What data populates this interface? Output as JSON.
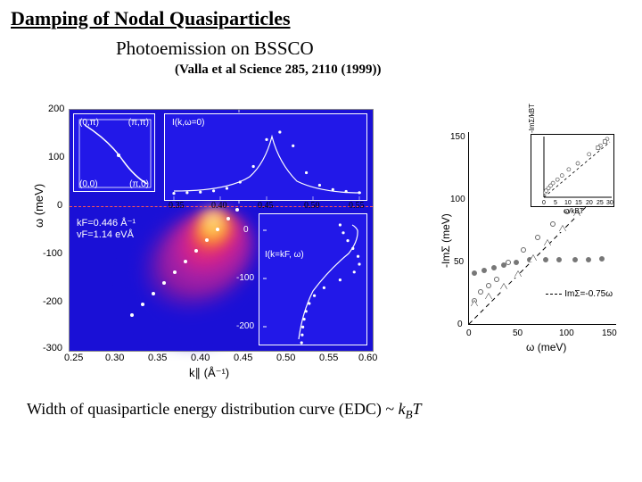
{
  "title": "Damping of Nodal Quasiparticles",
  "subtitle": "Photoemission on BSSCO",
  "citation": "(Valla et al Science 285, 2110 (1999))",
  "bottom_text": "Width of quasiparticle energy distribution curve (EDC) ~ k_B T",
  "left": {
    "ylabel": "ω (meV)",
    "xlabel": "k∥ (Å⁻¹)",
    "xlim": [
      0.25,
      0.6
    ],
    "ylim": [
      -300,
      200
    ],
    "xticks": [
      "0.25",
      "0.30",
      "0.35",
      "0.40",
      "0.45",
      "0.50",
      "0.55",
      "0.60"
    ],
    "yticks": [
      "-300",
      "-200",
      "-100",
      "0",
      "100",
      "200"
    ],
    "dash_at": 0,
    "bg_color": "#1a10d6",
    "k_annot": {
      "kF": "kF=0.446 Å⁻¹",
      "vF": "vF=1.14 eVÅ"
    },
    "inset_corner": {
      "labels": [
        "(0,π)",
        "(π,π)",
        "(0,0)",
        "(π,0)"
      ],
      "curve_color": "#ffffff"
    },
    "inset_peak": {
      "label": "I(k,ω=0)",
      "xticks": [
        "0.35",
        "0.40",
        "0.45",
        "0.50",
        "0.55"
      ],
      "points": [
        0.02,
        0.03,
        0.04,
        0.06,
        0.1,
        0.2,
        0.45,
        0.88,
        1.0,
        0.78,
        0.35,
        0.15,
        0.08,
        0.05,
        0.03
      ]
    },
    "inset_im": {
      "label": "I(k=kF, ω)",
      "yticks": [
        "0",
        "-100",
        "-200"
      ],
      "points": [
        0.7,
        0.75,
        0.82,
        0.9,
        0.98,
        1.0,
        0.92,
        0.7,
        0.45,
        0.3,
        0.22,
        0.17,
        0.14,
        0.12,
        0.11,
        0.1
      ]
    }
  },
  "right": {
    "ylabel": "-ImΣ (meV)",
    "xlabel": "ω (meV)",
    "xlim": [
      0,
      150
    ],
    "ylim": [
      0,
      150
    ],
    "xticks": [
      "0",
      "50",
      "100",
      "150"
    ],
    "yticks": [
      "0",
      "50",
      "100",
      "150"
    ],
    "legend": "ImΣ=-0.75ω",
    "series_circle_open": [
      [
        5,
        18
      ],
      [
        12,
        25
      ],
      [
        20,
        30
      ],
      [
        28,
        35
      ],
      [
        40,
        48
      ],
      [
        55,
        58
      ],
      [
        70,
        68
      ],
      [
        85,
        78
      ],
      [
        100,
        88
      ],
      [
        115,
        95
      ],
      [
        130,
        105
      ],
      [
        140,
        112
      ]
    ],
    "series_circle_solid": [
      [
        5,
        40
      ],
      [
        15,
        42
      ],
      [
        25,
        44
      ],
      [
        35,
        46
      ],
      [
        48,
        48
      ],
      [
        62,
        50
      ],
      [
        78,
        50
      ],
      [
        92,
        50
      ],
      [
        108,
        50
      ],
      [
        122,
        50
      ],
      [
        135,
        51
      ]
    ],
    "series_triangle": [
      [
        5,
        15
      ],
      [
        20,
        20
      ],
      [
        35,
        28
      ],
      [
        50,
        38
      ],
      [
        65,
        50
      ],
      [
        80,
        62
      ],
      [
        95,
        73
      ],
      [
        110,
        85
      ],
      [
        125,
        96
      ],
      [
        140,
        108
      ]
    ],
    "inset": {
      "ylabel": "-ImΣ/kBT",
      "xlabel": "ω/kBT",
      "xticks": [
        "0",
        "5",
        "10",
        "15",
        "20",
        "25",
        "30"
      ],
      "pts": [
        [
          0.5,
          1
        ],
        [
          1,
          1.3
        ],
        [
          2,
          1.8
        ],
        [
          3,
          2.3
        ],
        [
          4,
          2.8
        ],
        [
          6,
          3.5
        ],
        [
          8,
          4.3
        ],
        [
          11,
          5.5
        ],
        [
          15,
          6.7
        ],
        [
          20,
          8.5
        ],
        [
          25,
          10.2
        ],
        [
          28,
          11.5
        ]
      ]
    }
  },
  "colors": {
    "spectral_hot": [
      "#d0208f",
      "#f03060",
      "#ff7830",
      "#ffd040",
      "#ffffff"
    ],
    "plot_blue": "#1a10d6"
  }
}
